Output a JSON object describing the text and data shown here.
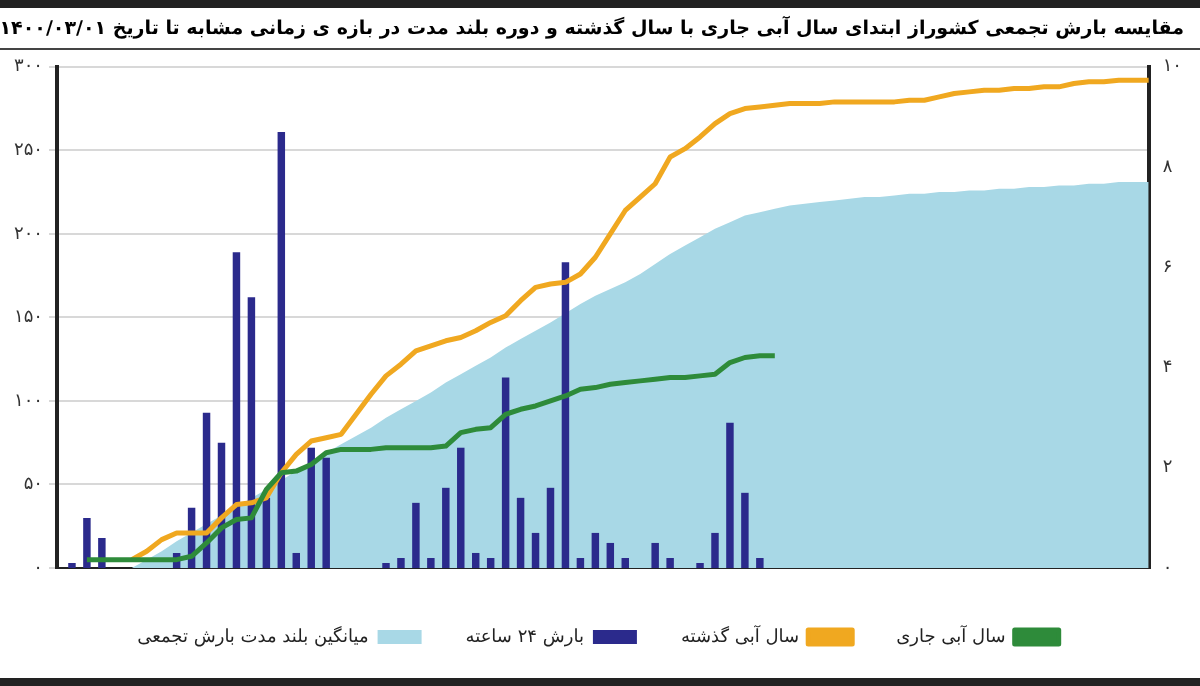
{
  "chart_data": {
    "type": "line",
    "title": "مقایسه بارش تجمعی کشوراز ابتدای سال آبی جاری با سال گذشته و دوره بلند مدت در بازه ی زمانی مشابه تا تاریخ ۱۴۰۰/۰۳/۰۱",
    "categories": [
      null,
      null,
      null,
      null,
      null,
      null,
      null,
      null,
      null,
      null,
      null,
      null,
      null,
      null,
      null,
      null,
      null,
      null,
      null,
      null,
      null,
      null,
      null,
      null,
      null,
      null,
      null,
      null,
      null,
      null,
      null,
      null,
      null,
      null,
      null,
      null,
      null,
      null,
      null,
      null,
      null,
      null,
      null,
      null,
      null,
      null,
      null,
      null,
      null,
      null,
      null,
      null,
      null,
      null,
      null,
      null,
      null,
      null,
      null,
      null,
      null,
      null,
      null,
      null,
      null,
      null,
      null,
      null,
      null,
      null,
      null,
      null,
      null,
      null
    ],
    "series": [
      {
        "name": "سال آبی جاری",
        "color": "#2e8b3a",
        "values": [
          null,
          null,
          5,
          5,
          5,
          5,
          5,
          5,
          5,
          7,
          15,
          24,
          29,
          30,
          47,
          57,
          58,
          62,
          69,
          71,
          71,
          71,
          72,
          72,
          72,
          72,
          73,
          81,
          83,
          84,
          92,
          95,
          97,
          100,
          103,
          107,
          108,
          110,
          111,
          112,
          113,
          114,
          114,
          115,
          116,
          123,
          126,
          127,
          127,
          null,
          null,
          null,
          null,
          null,
          null,
          null,
          null,
          null,
          null,
          null,
          null,
          null,
          null,
          null,
          null,
          null,
          null,
          null,
          null,
          null,
          null,
          null,
          null,
          null
        ]
      },
      {
        "name": "سال آبی گذشته",
        "color": "#f0a820",
        "values": [
          null,
          null,
          null,
          null,
          null,
          5,
          10,
          17,
          21,
          21,
          21,
          30,
          38,
          39,
          42,
          57,
          68,
          76,
          78,
          80,
          92,
          104,
          115,
          122,
          130,
          133,
          136,
          138,
          142,
          147,
          151,
          160,
          168,
          170,
          171,
          176,
          186,
          200,
          214,
          222,
          230,
          246,
          251,
          258,
          266,
          272,
          275,
          276,
          277,
          278,
          278,
          278,
          279,
          279,
          279,
          279,
          279,
          280,
          280,
          282,
          284,
          285,
          286,
          286,
          287,
          287,
          288,
          288,
          290,
          291,
          291,
          292,
          292,
          292
        ]
      },
      {
        "name": "بارش ۲۴ ساعته",
        "type": "bar",
        "axis": "y2",
        "color": "#2b2a8c",
        "values": [
          0,
          0.1,
          1.0,
          0.6,
          0,
          0,
          0,
          0,
          0.3,
          1.2,
          3.1,
          2.5,
          6.3,
          5.4,
          1.4,
          8.7,
          0.3,
          2.4,
          2.2,
          0,
          0,
          0,
          0.1,
          0.2,
          1.3,
          0.2,
          1.6,
          2.4,
          0.3,
          0.2,
          3.8,
          1.4,
          0.7,
          1.6,
          6.1,
          0.2,
          0.7,
          0.5,
          0.2,
          0,
          0.5,
          0.2,
          0,
          0.1,
          0.7,
          2.9,
          1.5,
          0.2,
          null,
          null,
          null,
          null,
          null,
          null,
          null,
          null,
          null,
          null,
          null,
          null,
          null,
          null,
          null,
          null,
          null,
          null,
          null,
          null,
          null,
          null,
          null,
          null,
          null,
          null
        ]
      },
      {
        "name": "میانگین بلند مدت بارش تجمعی",
        "type": "area",
        "color": "#a8d8e6",
        "values": [
          0,
          0,
          0,
          0,
          0,
          0,
          5,
          10,
          16,
          null,
          null,
          null,
          null,
          null,
          47,
          null,
          58,
          null,
          69,
          74,
          79,
          84,
          90,
          95,
          100,
          105,
          111,
          116,
          121,
          126,
          132,
          137,
          142,
          147,
          null,
          158,
          163,
          167,
          171,
          176,
          182,
          188,
          193,
          198,
          203,
          207,
          211,
          213,
          215,
          217,
          218,
          219,
          220,
          221,
          222,
          222,
          223,
          224,
          224,
          225,
          225,
          226,
          226,
          227,
          227,
          228,
          228,
          229,
          229,
          230,
          230,
          231,
          231,
          231
        ]
      }
    ],
    "ylim": [
      0,
      300
    ],
    "yticks": [
      {
        "value": 0,
        "label": "۰"
      },
      {
        "value": 50,
        "label": "۵۰"
      },
      {
        "value": 100,
        "label": "۱۰۰"
      },
      {
        "value": 150,
        "label": "۱۵۰"
      },
      {
        "value": 200,
        "label": "۲۰۰"
      },
      {
        "value": 250,
        "label": "۲۵۰"
      },
      {
        "value": 300,
        "label": "۳۰۰"
      }
    ],
    "y2lim": [
      0,
      10
    ],
    "y2ticks": [
      {
        "value": 0,
        "label": "۰"
      },
      {
        "value": 2,
        "label": "۲"
      },
      {
        "value": 4,
        "label": "۴"
      },
      {
        "value": 6,
        "label": "۶"
      },
      {
        "value": 8,
        "label": "۸"
      },
      {
        "value": 10,
        "label": "۱۰"
      }
    ],
    "grid": "y",
    "legend": "bottom"
  }
}
